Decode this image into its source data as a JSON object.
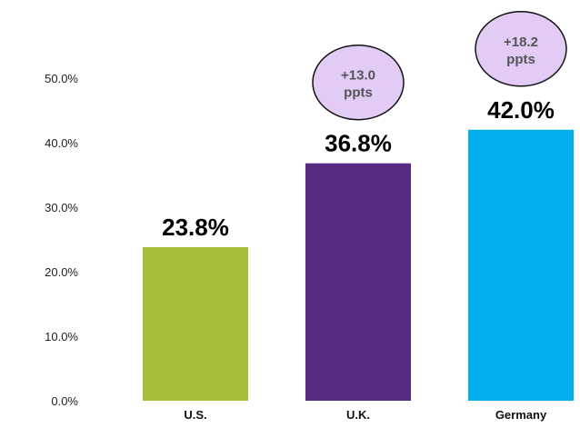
{
  "chart_data": {
    "type": "bar",
    "categories": [
      "U.S.",
      "U.K.",
      "Germany"
    ],
    "values": [
      23.8,
      36.8,
      42.0
    ],
    "data_labels": [
      "23.8%",
      "36.8%",
      "42.0%"
    ],
    "colors": [
      "#a4c03b",
      "#572a83",
      "#02aeeb"
    ],
    "ylim": [
      0,
      50
    ],
    "yticks": [
      {
        "value": 0,
        "label": "0.0%"
      },
      {
        "value": 10,
        "label": "10.0%"
      },
      {
        "value": 20,
        "label": "20.0%"
      },
      {
        "value": 30,
        "label": "30.0%"
      },
      {
        "value": 40,
        "label": "40.0%"
      },
      {
        "value": 50,
        "label": "50.0%"
      }
    ],
    "annotations": [
      {
        "category": "U.K.",
        "line1": "+13.0",
        "line2": "ppts"
      },
      {
        "category": "Germany",
        "line1": "+18.2",
        "line2": "ppts"
      }
    ],
    "annotation_fill": "#e2cbf5",
    "grid": false,
    "legend": "none",
    "title": "",
    "xlabel": "",
    "ylabel": ""
  }
}
